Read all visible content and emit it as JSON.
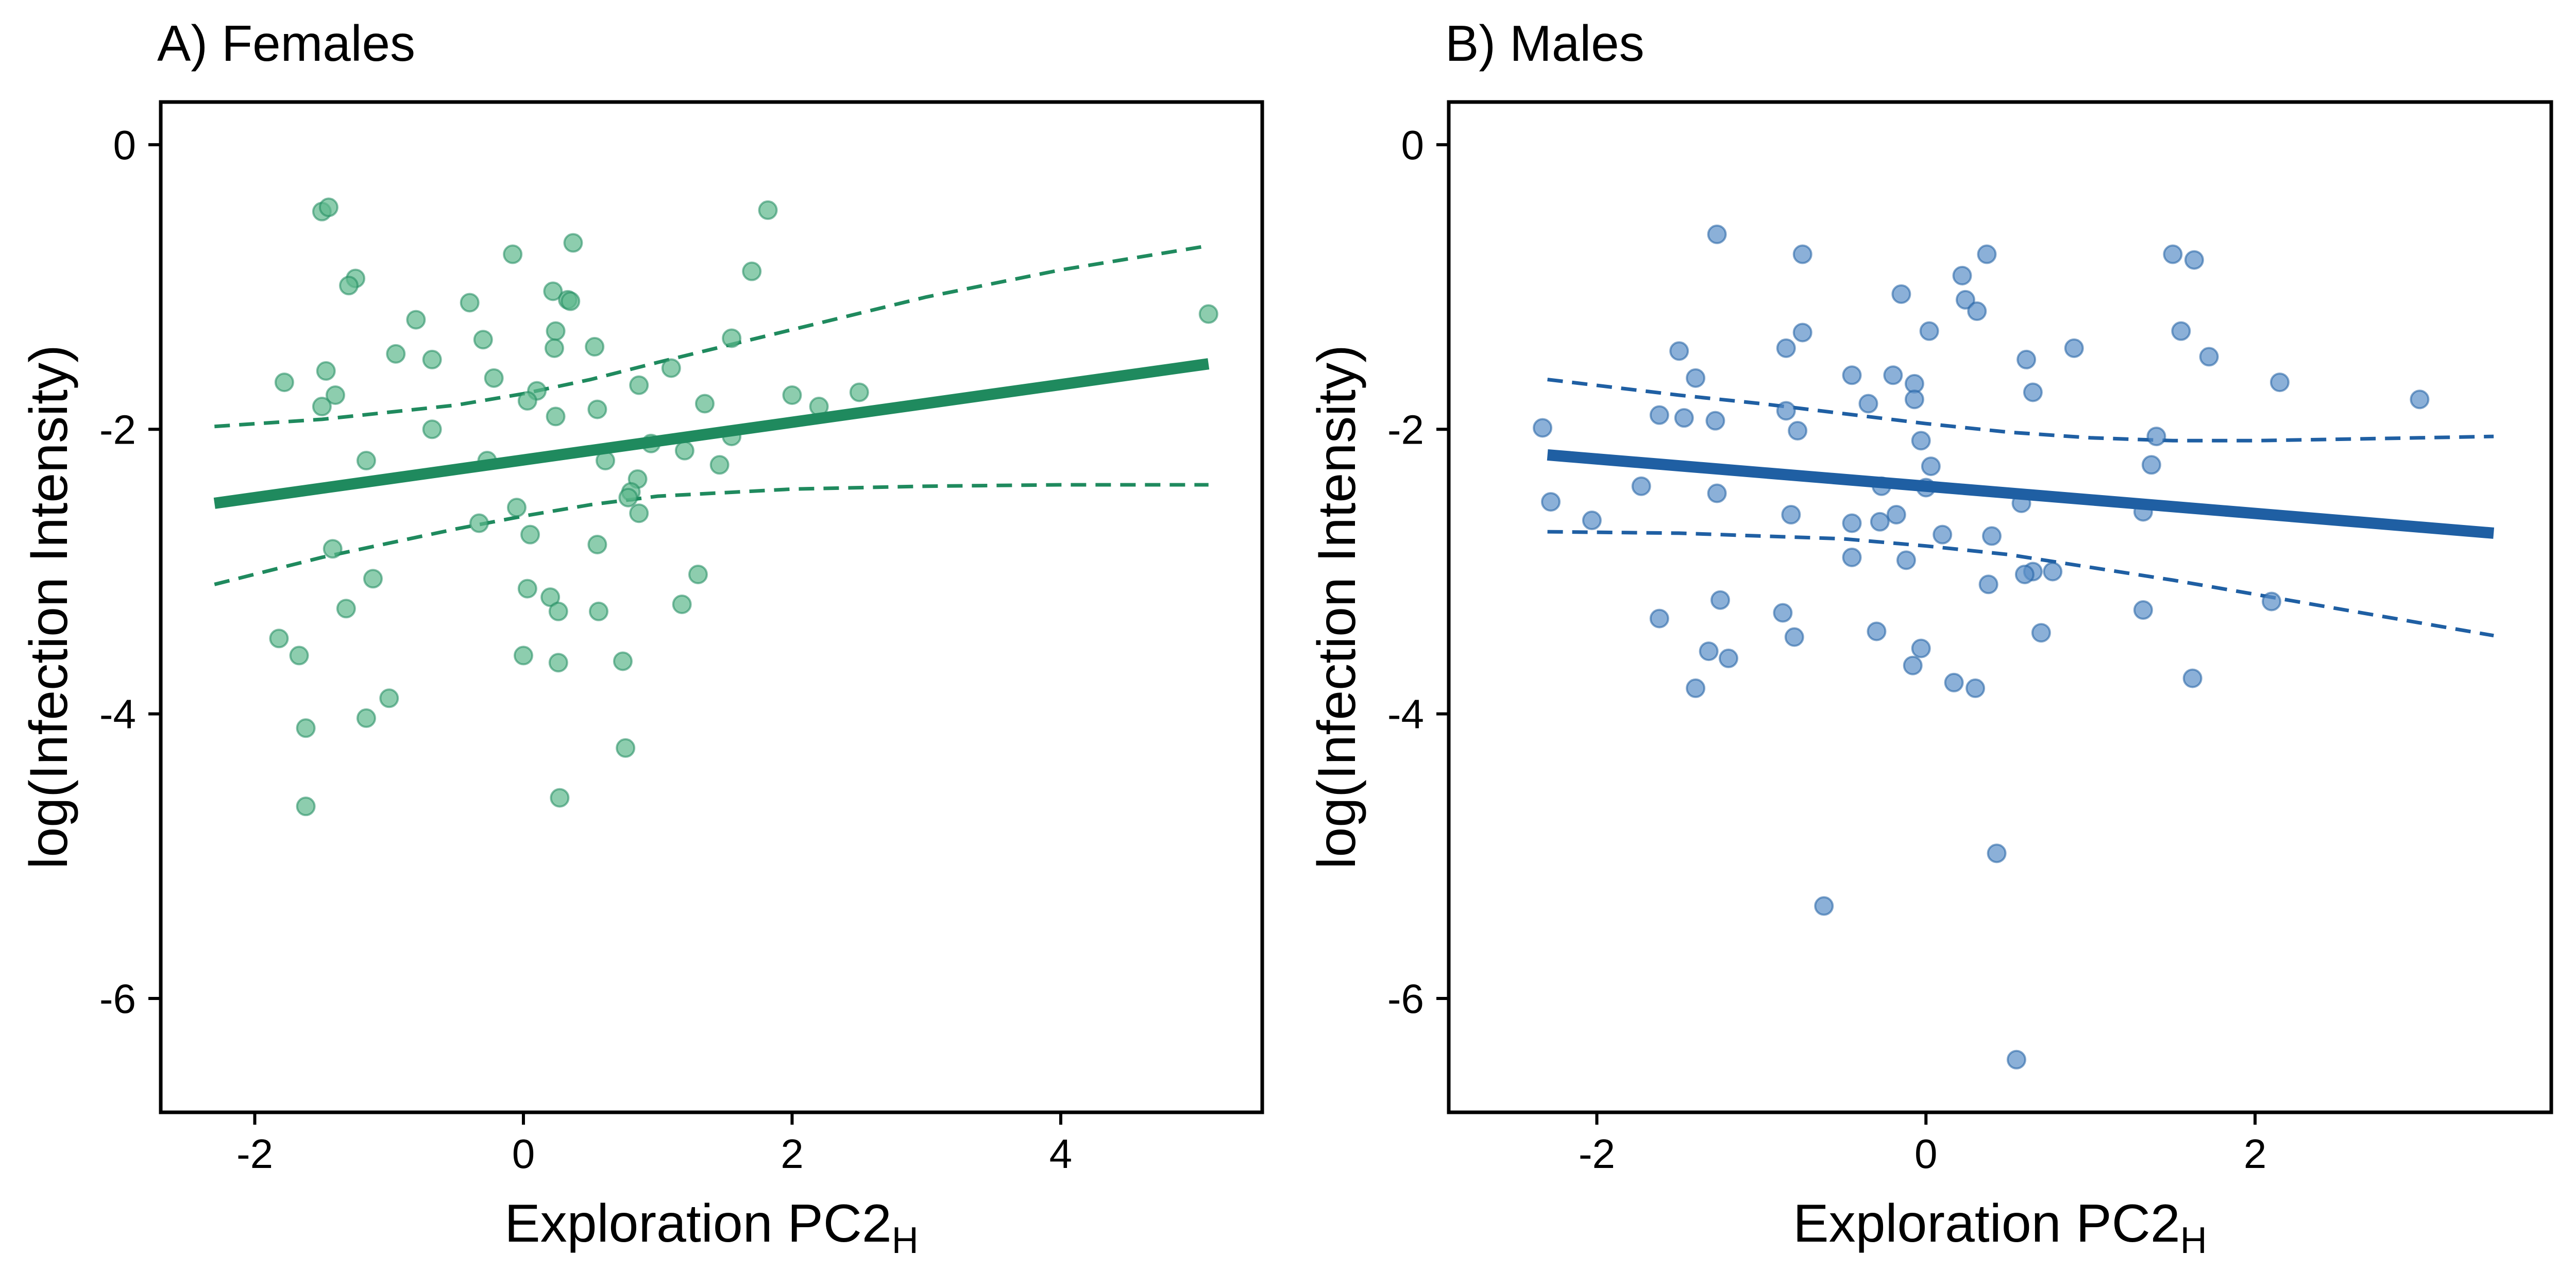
{
  "colors": {
    "females": "#1f8a5e",
    "females_point": "#5cb88c",
    "males": "#1f5fa3",
    "males_point": "#5a8ec8"
  },
  "chart_data": [
    {
      "type": "scatter",
      "title": "A) Females",
      "xlabel": "Exploration PC2",
      "xlabel_subscript": "H",
      "ylabel": "log(Infection Intensity)",
      "xlim": [
        -2.7,
        5.5
      ],
      "ylim": [
        -6.8,
        0.3
      ],
      "xticks": [
        -2,
        0,
        2,
        4
      ],
      "xtick_labels": [
        "-2",
        "0",
        "2",
        "4"
      ],
      "yticks": [
        0,
        -2,
        -4,
        -6
      ],
      "ytick_labels": [
        "0",
        "-2",
        "-4",
        "-6"
      ],
      "grid": false,
      "points": [
        [
          -1.5,
          -0.47
        ],
        [
          -1.45,
          -0.44
        ],
        [
          1.82,
          -0.46
        ],
        [
          0.37,
          -0.69
        ],
        [
          -0.08,
          -0.77
        ],
        [
          1.7,
          -0.89
        ],
        [
          -1.25,
          -0.94
        ],
        [
          -1.3,
          -0.99
        ],
        [
          0.22,
          -1.03
        ],
        [
          0.33,
          -1.09
        ],
        [
          0.35,
          -1.1
        ],
        [
          -0.4,
          -1.11
        ],
        [
          5.1,
          -1.19
        ],
        [
          -0.8,
          -1.23
        ],
        [
          0.24,
          -1.31
        ],
        [
          -0.3,
          -1.37
        ],
        [
          1.55,
          -1.36
        ],
        [
          0.53,
          -1.42
        ],
        [
          0.23,
          -1.43
        ],
        [
          -0.95,
          -1.47
        ],
        [
          -0.68,
          -1.51
        ],
        [
          1.1,
          -1.57
        ],
        [
          -1.47,
          -1.59
        ],
        [
          -0.22,
          -1.64
        ],
        [
          -1.78,
          -1.67
        ],
        [
          0.86,
          -1.69
        ],
        [
          0.1,
          -1.73
        ],
        [
          2.5,
          -1.74
        ],
        [
          -1.4,
          -1.76
        ],
        [
          2.0,
          -1.76
        ],
        [
          0.03,
          -1.8
        ],
        [
          1.35,
          -1.82
        ],
        [
          -1.5,
          -1.84
        ],
        [
          2.2,
          -1.84
        ],
        [
          0.55,
          -1.86
        ],
        [
          0.24,
          -1.91
        ],
        [
          -0.68,
          -2.0
        ],
        [
          1.55,
          -2.05
        ],
        [
          0.95,
          -2.1
        ],
        [
          1.2,
          -2.15
        ],
        [
          -1.17,
          -2.22
        ],
        [
          -0.27,
          -2.22
        ],
        [
          0.61,
          -2.22
        ],
        [
          1.46,
          -2.25
        ],
        [
          0.85,
          -2.35
        ],
        [
          0.8,
          -2.44
        ],
        [
          0.78,
          -2.48
        ],
        [
          -0.05,
          -2.55
        ],
        [
          0.86,
          -2.59
        ],
        [
          -0.33,
          -2.66
        ],
        [
          0.05,
          -2.74
        ],
        [
          0.55,
          -2.81
        ],
        [
          -1.42,
          -2.84
        ],
        [
          1.3,
          -3.02
        ],
        [
          -1.12,
          -3.05
        ],
        [
          0.03,
          -3.12
        ],
        [
          0.2,
          -3.18
        ],
        [
          1.18,
          -3.23
        ],
        [
          -1.32,
          -3.26
        ],
        [
          0.26,
          -3.28
        ],
        [
          0.56,
          -3.28
        ],
        [
          -1.82,
          -3.47
        ],
        [
          -1.67,
          -3.59
        ],
        [
          0.0,
          -3.59
        ],
        [
          0.26,
          -3.64
        ],
        [
          0.74,
          -3.63
        ],
        [
          -1.0,
          -3.89
        ],
        [
          -1.17,
          -4.03
        ],
        [
          -1.62,
          -4.1
        ],
        [
          0.76,
          -4.24
        ],
        [
          0.27,
          -4.59
        ],
        [
          -1.62,
          -4.65
        ]
      ],
      "fit": {
        "x": [
          -2.3,
          5.1
        ],
        "y": [
          -2.52,
          -1.54
        ]
      },
      "ci_upper": {
        "x": [
          -2.3,
          -1.5,
          -0.5,
          0.0,
          0.5,
          1.0,
          2.0,
          3.0,
          4.0,
          5.1
        ],
        "y": [
          -1.98,
          -1.93,
          -1.83,
          -1.75,
          -1.65,
          -1.53,
          -1.3,
          -1.07,
          -0.88,
          -0.71
        ]
      },
      "ci_lower": {
        "x": [
          -2.3,
          -1.5,
          -0.5,
          0.0,
          0.5,
          1.0,
          2.0,
          3.0,
          4.0,
          5.1
        ],
        "y": [
          -3.09,
          -2.9,
          -2.7,
          -2.61,
          -2.53,
          -2.47,
          -2.42,
          -2.4,
          -2.39,
          -2.39
        ]
      }
    },
    {
      "type": "scatter",
      "title": "B) Males",
      "xlabel": "Exploration PC2",
      "xlabel_subscript": "H",
      "ylabel": "log(Infection Intensity)",
      "xlim": [
        -2.9,
        3.8
      ],
      "ylim": [
        -6.8,
        0.3
      ],
      "xticks": [
        -2,
        0,
        2
      ],
      "xtick_labels": [
        "-2",
        "0",
        "2"
      ],
      "yticks": [
        0,
        -2,
        -4,
        -6
      ],
      "ytick_labels": [
        "0",
        "-2",
        "-4",
        "-6"
      ],
      "grid": false,
      "points": [
        [
          -1.27,
          -0.63
        ],
        [
          -0.75,
          -0.77
        ],
        [
          0.37,
          -0.77
        ],
        [
          1.5,
          -0.77
        ],
        [
          1.63,
          -0.81
        ],
        [
          0.22,
          -0.92
        ],
        [
          -0.15,
          -1.05
        ],
        [
          0.24,
          -1.09
        ],
        [
          0.31,
          -1.17
        ],
        [
          -0.75,
          -1.32
        ],
        [
          0.02,
          -1.31
        ],
        [
          1.55,
          -1.31
        ],
        [
          -1.5,
          -1.45
        ],
        [
          -0.85,
          -1.43
        ],
        [
          0.9,
          -1.43
        ],
        [
          1.72,
          -1.49
        ],
        [
          0.61,
          -1.51
        ],
        [
          -0.45,
          -1.62
        ],
        [
          -0.2,
          -1.62
        ],
        [
          -1.4,
          -1.64
        ],
        [
          2.15,
          -1.67
        ],
        [
          -0.07,
          -1.68
        ],
        [
          0.65,
          -1.74
        ],
        [
          -0.07,
          -1.79
        ],
        [
          3.0,
          -1.79
        ],
        [
          -0.35,
          -1.82
        ],
        [
          -0.85,
          -1.87
        ],
        [
          -1.62,
          -1.9
        ],
        [
          -1.47,
          -1.92
        ],
        [
          -1.28,
          -1.94
        ],
        [
          -2.33,
          -1.99
        ],
        [
          -0.78,
          -2.01
        ],
        [
          -0.03,
          -2.08
        ],
        [
          1.4,
          -2.05
        ],
        [
          0.03,
          -2.26
        ],
        [
          1.37,
          -2.25
        ],
        [
          -1.73,
          -2.4
        ],
        [
          -0.27,
          -2.4
        ],
        [
          0.0,
          -2.41
        ],
        [
          -1.27,
          -2.45
        ],
        [
          -2.28,
          -2.51
        ],
        [
          0.58,
          -2.52
        ],
        [
          1.32,
          -2.58
        ],
        [
          -0.82,
          -2.6
        ],
        [
          -0.18,
          -2.6
        ],
        [
          -2.03,
          -2.64
        ],
        [
          -0.45,
          -2.66
        ],
        [
          -0.28,
          -2.65
        ],
        [
          0.1,
          -2.74
        ],
        [
          0.4,
          -2.75
        ],
        [
          -0.45,
          -2.9
        ],
        [
          -0.12,
          -2.92
        ],
        [
          0.65,
          -3.0
        ],
        [
          0.77,
          -3.0
        ],
        [
          0.6,
          -3.02
        ],
        [
          0.38,
          -3.09
        ],
        [
          -1.25,
          -3.2
        ],
        [
          2.1,
          -3.21
        ],
        [
          1.32,
          -3.27
        ],
        [
          -0.87,
          -3.29
        ],
        [
          -1.62,
          -3.33
        ],
        [
          -0.3,
          -3.42
        ],
        [
          0.7,
          -3.43
        ],
        [
          -0.8,
          -3.46
        ],
        [
          -0.03,
          -3.54
        ],
        [
          -1.32,
          -3.56
        ],
        [
          -1.2,
          -3.61
        ],
        [
          -0.08,
          -3.66
        ],
        [
          1.62,
          -3.75
        ],
        [
          0.17,
          -3.78
        ],
        [
          -1.4,
          -3.82
        ],
        [
          0.3,
          -3.82
        ],
        [
          0.43,
          -4.98
        ],
        [
          -0.62,
          -5.35
        ],
        [
          0.55,
          -6.43
        ]
      ],
      "fit": {
        "x": [
          -2.3,
          3.45
        ],
        "y": [
          -2.18,
          -2.73
        ]
      },
      "ci_upper": {
        "x": [
          -2.3,
          -1.5,
          -1.0,
          -0.5,
          0.0,
          0.5,
          1.0,
          1.5,
          2.0,
          2.5,
          3.0,
          3.45
        ],
        "y": [
          -1.65,
          -1.76,
          -1.82,
          -1.89,
          -1.96,
          -2.02,
          -2.06,
          -2.08,
          -2.08,
          -2.07,
          -2.06,
          -2.05
        ]
      },
      "ci_lower": {
        "x": [
          -2.3,
          -1.5,
          -1.0,
          -0.5,
          0.0,
          0.5,
          1.0,
          1.5,
          2.0,
          2.5,
          3.0,
          3.45
        ],
        "y": [
          -2.72,
          -2.73,
          -2.75,
          -2.77,
          -2.82,
          -2.88,
          -2.97,
          -3.06,
          -3.16,
          -3.26,
          -3.36,
          -3.45
        ]
      }
    }
  ]
}
